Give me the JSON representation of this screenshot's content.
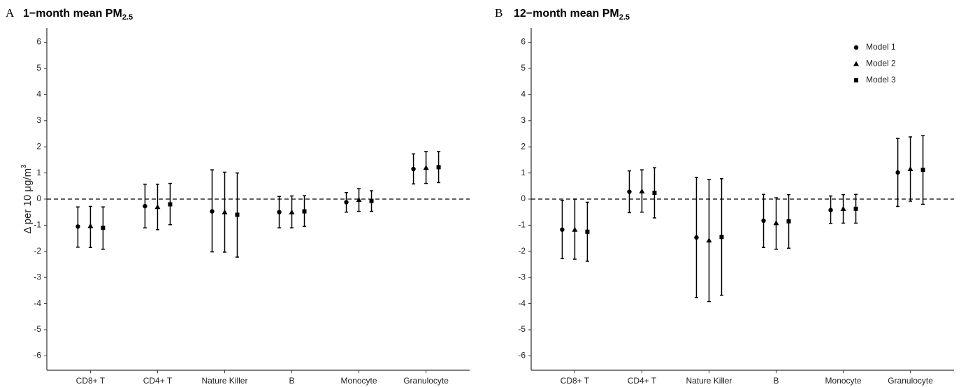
{
  "chart_data": [
    {
      "type": "errorbar",
      "panel_label": "A",
      "title": "1−month mean PM",
      "title_subscript": "2.5",
      "ylabel": "Δ per 10 μg/m",
      "ylabel_superscript": "3",
      "categories": [
        "CD8+ T",
        "CD4+ T",
        "Nature Killer",
        "B",
        "Monocyte",
        "Granulocyte"
      ],
      "series": [
        {
          "marker": "circle",
          "color": "#000000",
          "values": [
            -1.05,
            -0.27,
            -0.47,
            -0.5,
            -0.12,
            1.15
          ],
          "lower": [
            -1.84,
            -1.1,
            -2.02,
            -1.1,
            -0.5,
            0.58
          ],
          "upper": [
            -0.3,
            0.57,
            1.12,
            0.1,
            0.25,
            1.73
          ]
        },
        {
          "marker": "triangle",
          "color": "#000000",
          "values": [
            -1.03,
            -0.3,
            -0.5,
            -0.5,
            -0.03,
            1.2
          ],
          "lower": [
            -1.85,
            -1.17,
            -2.03,
            -1.1,
            -0.47,
            0.6
          ],
          "upper": [
            -0.28,
            0.57,
            1.03,
            0.12,
            0.4,
            1.82
          ]
        },
        {
          "marker": "square",
          "color": "#000000",
          "values": [
            -1.1,
            -0.2,
            -0.6,
            -0.47,
            -0.07,
            1.22
          ],
          "lower": [
            -1.92,
            -0.98,
            -2.22,
            -1.05,
            -0.47,
            0.63
          ],
          "upper": [
            -0.3,
            0.6,
            1.0,
            0.13,
            0.32,
            1.82
          ]
        }
      ],
      "ylim": [
        -6.55,
        6.55
      ],
      "yticks": [
        -6,
        -5,
        -4,
        -3,
        -2,
        -1,
        0,
        1,
        2,
        3,
        4,
        5,
        6
      ],
      "reference_line": 0
    },
    {
      "type": "errorbar",
      "panel_label": "B",
      "title": "12−month mean PM",
      "title_subscript": "2.5",
      "categories": [
        "CD8+ T",
        "CD4+ T",
        "Nature Killer",
        "B",
        "Monocyte",
        "Granulocyte"
      ],
      "series": [
        {
          "name": "Model 1",
          "marker": "circle",
          "color": "#000000",
          "values": [
            -1.17,
            0.28,
            -1.47,
            -0.83,
            -0.42,
            1.02
          ],
          "lower": [
            -2.28,
            -0.52,
            -3.77,
            -1.85,
            -0.93,
            -0.28
          ],
          "upper": [
            -0.05,
            1.08,
            0.83,
            0.18,
            0.12,
            2.32
          ]
        },
        {
          "name": "Model 2",
          "marker": "triangle",
          "color": "#000000",
          "values": [
            -1.17,
            0.3,
            -1.58,
            -0.92,
            -0.37,
            1.15
          ],
          "lower": [
            -2.3,
            -0.5,
            -3.92,
            -1.92,
            -0.92,
            -0.08
          ],
          "upper": [
            0.0,
            1.12,
            0.75,
            0.05,
            0.17,
            2.38
          ]
        },
        {
          "name": "Model 3",
          "marker": "square",
          "color": "#000000",
          "values": [
            -1.25,
            0.24,
            -1.45,
            -0.85,
            -0.37,
            1.12
          ],
          "lower": [
            -2.38,
            -0.72,
            -3.68,
            -1.88,
            -0.92,
            -0.2
          ],
          "upper": [
            -0.12,
            1.2,
            0.78,
            0.17,
            0.18,
            2.43
          ]
        }
      ],
      "ylim": [
        -6.55,
        6.55
      ],
      "yticks": [
        -6,
        -5,
        -4,
        -3,
        -2,
        -1,
        0,
        1,
        2,
        3,
        4,
        5,
        6
      ],
      "reference_line": 0,
      "legend": "top-right"
    }
  ]
}
